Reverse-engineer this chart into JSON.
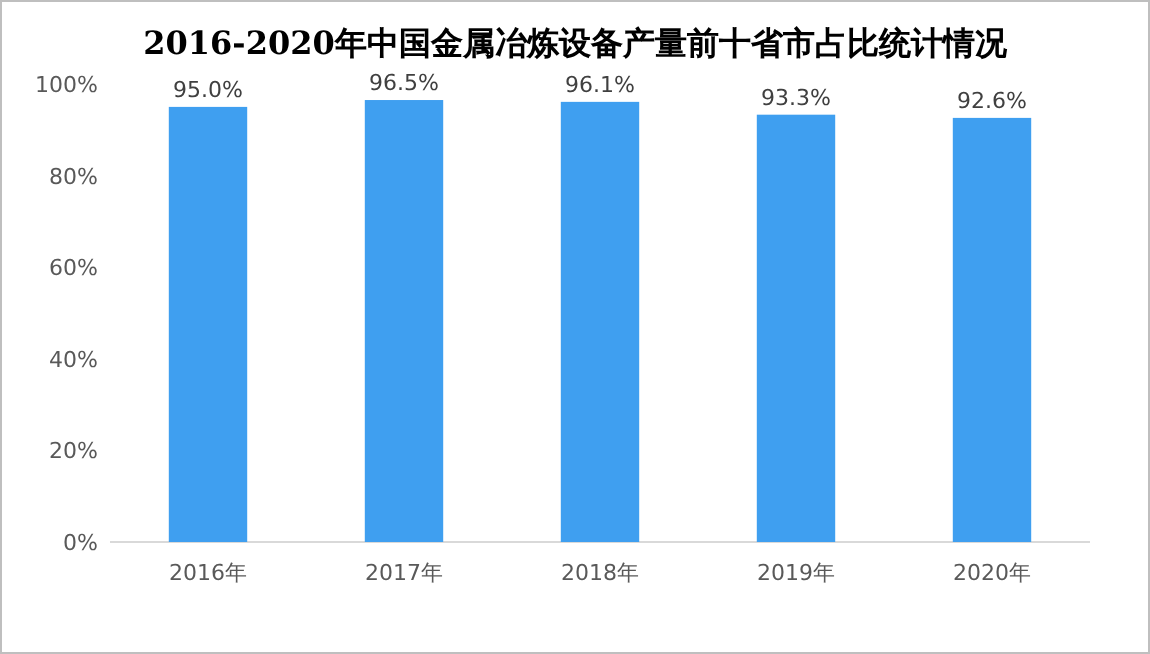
{
  "chart_data": {
    "type": "bar",
    "title": "2016-2020年中国金属冶炼设备产量前十省市占比统计情况",
    "categories": [
      "2016年",
      "2017年",
      "2018年",
      "2019年",
      "2020年"
    ],
    "values": [
      95.0,
      96.5,
      96.1,
      93.3,
      92.6
    ],
    "value_labels": [
      "95.0%",
      "96.5%",
      "96.1%",
      "93.3%",
      "92.6%"
    ],
    "color": "#3f9ff0",
    "ylim": [
      0,
      100
    ],
    "yticks": [
      {
        "value": 0,
        "label": "0%"
      },
      {
        "value": 20,
        "label": "20%"
      },
      {
        "value": 40,
        "label": "40%"
      },
      {
        "value": 60,
        "label": "60%"
      },
      {
        "value": 80,
        "label": "80%"
      },
      {
        "value": 100,
        "label": "100%"
      }
    ]
  }
}
